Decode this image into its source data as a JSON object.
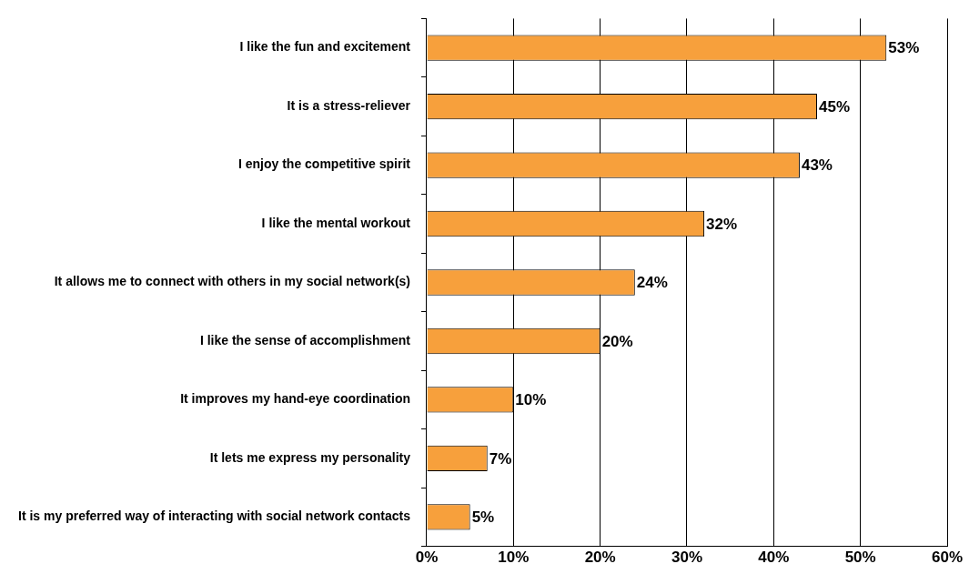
{
  "chart_data": {
    "type": "bar",
    "orientation": "horizontal",
    "categories": [
      "I like the fun and excitement",
      "It is a stress-reliever",
      "I enjoy the competitive spirit",
      "I like the mental workout",
      "It allows me to connect with others in my social network(s)",
      "I like the sense of accomplishment",
      "It improves my hand-eye coordination",
      "It lets me express my personality",
      "It is my preferred way of interacting with social network contacts"
    ],
    "values": [
      53,
      45,
      43,
      32,
      24,
      20,
      10,
      7,
      5
    ],
    "value_labels": [
      "53%",
      "45%",
      "43%",
      "32%",
      "24%",
      "20%",
      "10%",
      "7%",
      "5%"
    ],
    "color": "#f7a03c",
    "xlim": [
      0,
      60
    ],
    "xticks": [
      {
        "value": 0,
        "label": "0%"
      },
      {
        "value": 10,
        "label": "10%"
      },
      {
        "value": 20,
        "label": "20%"
      },
      {
        "value": 30,
        "label": "30%"
      },
      {
        "value": 40,
        "label": "40%"
      },
      {
        "value": 50,
        "label": "50%"
      },
      {
        "value": 60,
        "label": "60%"
      }
    ],
    "grid": "x",
    "legend": false
  }
}
